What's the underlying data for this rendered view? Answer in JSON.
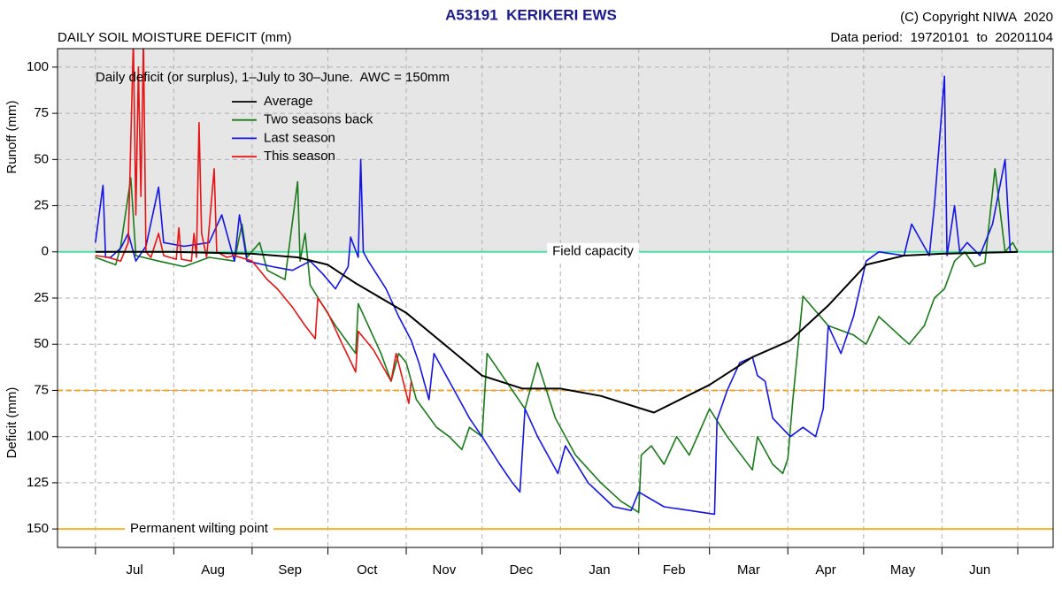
{
  "chart_data": {
    "type": "line",
    "title": "A53191  KERIKERI EWS",
    "subtitle": "DAILY SOIL MOISTURE DEFICIT (mm)",
    "copyright": "(C) Copyright NIWA  2020",
    "data_period": "Data period:  19720101  to  20201104",
    "annotation": "Daily deficit (or surplus), 1–July to 30–June.  AWC = 150mm",
    "y_label_top": "Runoff (mm)",
    "y_label_bottom": "Deficit (mm)",
    "months": [
      "Jul",
      "Aug",
      "Sep",
      "Oct",
      "Nov",
      "Dec",
      "Jan",
      "Feb",
      "Mar",
      "Apr",
      "May",
      "Jun"
    ],
    "xlim": [
      -15,
      379
    ],
    "xticks": [
      0,
      31,
      62,
      92,
      123,
      153,
      184,
      215,
      243,
      274,
      304,
      335,
      365
    ],
    "ylim": [
      -160,
      110
    ],
    "yticks": [
      100,
      75,
      50,
      25,
      0,
      {
        "value": -25,
        "label": "25"
      },
      {
        "value": -50,
        "label": "50"
      },
      {
        "value": -75,
        "label": "75"
      },
      {
        "value": -100,
        "label": "100"
      },
      {
        "value": -125,
        "label": "125"
      },
      {
        "value": -150,
        "label": "150"
      }
    ],
    "grid": true,
    "shade_above": 0,
    "reference_lines": [
      {
        "label": "Field capacity",
        "value": 0,
        "color": "#4fe0a8",
        "style": "solid"
      },
      {
        "value": -75,
        "color": "#f5a623",
        "style": "dashed"
      },
      {
        "label": "Permanent wilting point",
        "value": -150,
        "color": "#f5b030",
        "style": "solid"
      }
    ],
    "series": [
      {
        "name": "Average",
        "color": "#000000",
        "x": [
          0,
          30,
          62,
          80,
          92,
          103,
          123,
          138,
          153,
          169,
          184,
          200,
          221,
          243,
          260,
          275,
          290,
          305,
          320,
          335,
          365
        ],
        "values": [
          0,
          0,
          -1,
          -3,
          -7,
          -17,
          -33,
          -50,
          -67,
          -74,
          -74,
          -78,
          -87,
          -72,
          -57,
          -48,
          -29,
          -7,
          -2,
          -1,
          0
        ]
      },
      {
        "name": "Two seasons back",
        "color": "#1a7a1a",
        "x": [
          0,
          4,
          8,
          10,
          14,
          16,
          25,
          35,
          45,
          55,
          58,
          60,
          65,
          68,
          75,
          80,
          81,
          83,
          85,
          95,
          103,
          104,
          113,
          117,
          120,
          123,
          127,
          135,
          140,
          145,
          148,
          153,
          155,
          160,
          170,
          175,
          182,
          190,
          200,
          208,
          215,
          216,
          220,
          225,
          230,
          235,
          243,
          250,
          260,
          262,
          268,
          272,
          274,
          276,
          280,
          285,
          290,
          300,
          305,
          310,
          318,
          322,
          328,
          332,
          336,
          340,
          344,
          348,
          352,
          356,
          360,
          363,
          365
        ],
        "values": [
          -3,
          -5,
          -7,
          3,
          40,
          -2,
          -5,
          -8,
          -3,
          -5,
          15,
          -3,
          5,
          -10,
          -15,
          38,
          -5,
          10,
          -18,
          -40,
          -55,
          -28,
          -55,
          -70,
          -55,
          -60,
          -80,
          -95,
          -100,
          -107,
          -95,
          -100,
          -55,
          -65,
          -85,
          -60,
          -90,
          -110,
          -125,
          -135,
          -141,
          -110,
          -105,
          -115,
          -100,
          -110,
          -85,
          -100,
          -118,
          -100,
          -115,
          -120,
          -112,
          -80,
          -24,
          -32,
          -40,
          -45,
          -50,
          -35,
          -45,
          -50,
          -40,
          -25,
          -20,
          -5,
          0,
          -8,
          -6,
          45,
          0,
          5,
          0
        ]
      },
      {
        "name": "Last season",
        "color": "#1414e6",
        "x": [
          0,
          3,
          4,
          6,
          10,
          13,
          16,
          20,
          25,
          27,
          35,
          45,
          50,
          55,
          57,
          60,
          70,
          78,
          85,
          90,
          95,
          100,
          101,
          104,
          105,
          106,
          108,
          115,
          120,
          125,
          128,
          132,
          134,
          138,
          142,
          148,
          153,
          160,
          165,
          168,
          170,
          175,
          183,
          186,
          195,
          205,
          212,
          215,
          225,
          235,
          245,
          246,
          250,
          255,
          260,
          262,
          265,
          268,
          275,
          280,
          285,
          288,
          290,
          295,
          300,
          305,
          310,
          320,
          323,
          330,
          332,
          336,
          337,
          340,
          342,
          345,
          350,
          355,
          360,
          362,
          365
        ],
        "values": [
          5,
          36,
          -3,
          -3,
          2,
          10,
          -5,
          3,
          35,
          5,
          3,
          5,
          20,
          -5,
          20,
          -5,
          -8,
          -10,
          -5,
          -12,
          -20,
          -8,
          8,
          -3,
          50,
          0,
          -5,
          -20,
          -35,
          -48,
          -60,
          -80,
          -55,
          -65,
          -75,
          -90,
          -100,
          -115,
          -125,
          -130,
          -85,
          -100,
          -120,
          -105,
          -125,
          -138,
          -140,
          -130,
          -138,
          -140,
          -142,
          -91,
          -75,
          -60,
          -57,
          -67,
          -70,
          -90,
          -100,
          -95,
          -100,
          -85,
          -40,
          -55,
          -35,
          -5,
          0,
          -2,
          15,
          -2,
          25,
          95,
          -2,
          25,
          0,
          5,
          -2,
          15,
          50,
          0,
          0
        ]
      },
      {
        "name": "This season",
        "color": "#e61414",
        "x": [
          0,
          5,
          10,
          13,
          15,
          16,
          17,
          18,
          19,
          20,
          22,
          25,
          27,
          32,
          33,
          34,
          38,
          39,
          40,
          41,
          42,
          44,
          47,
          48,
          52,
          55,
          62,
          68,
          72,
          78,
          83,
          87,
          88,
          92,
          97,
          103,
          104,
          110,
          117,
          119,
          124,
          125
        ],
        "values": [
          -2,
          -3,
          -5,
          5,
          115,
          20,
          100,
          30,
          115,
          0,
          -3,
          10,
          -2,
          -4,
          13,
          -4,
          -5,
          10,
          -3,
          70,
          10,
          -3,
          45,
          0,
          -3,
          -2,
          -5,
          -15,
          -20,
          -30,
          -40,
          -47,
          -25,
          -33,
          -48,
          -65,
          -43,
          -53,
          -70,
          -55,
          -82,
          -70
        ]
      }
    ]
  }
}
